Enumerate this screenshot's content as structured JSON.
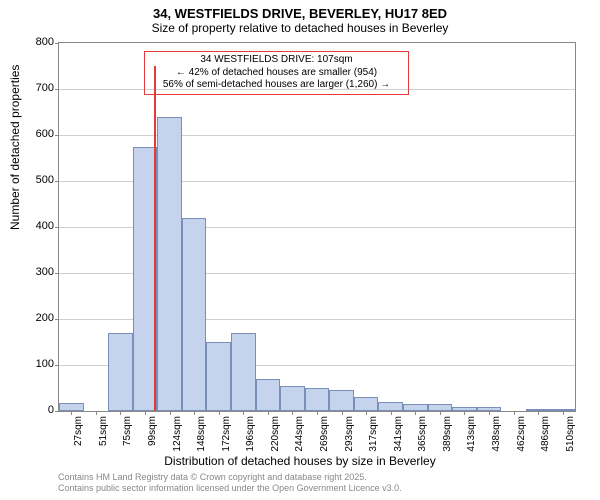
{
  "title": "34, WESTFIELDS DRIVE, BEVERLEY, HU17 8ED",
  "subtitle": "Size of property relative to detached houses in Beverley",
  "chart": {
    "type": "histogram",
    "ylabel": "Number of detached properties",
    "xlabel": "Distribution of detached houses by size in Beverley",
    "ylim": [
      0,
      800
    ],
    "ytick_step": 100,
    "background_color": "#ffffff",
    "grid_color": "#d0d0d0",
    "bar_fill": "#c6d3ec",
    "bar_stroke": "#7a8fb8",
    "marker_color": "#e63939",
    "xtick_labels": [
      "27sqm",
      "51sqm",
      "75sqm",
      "99sqm",
      "124sqm",
      "148sqm",
      "172sqm",
      "196sqm",
      "220sqm",
      "244sqm",
      "269sqm",
      "293sqm",
      "317sqm",
      "341sqm",
      "365sqm",
      "389sqm",
      "413sqm",
      "438sqm",
      "462sqm",
      "486sqm",
      "510sqm"
    ],
    "values": [
      18,
      0,
      170,
      575,
      640,
      420,
      150,
      170,
      70,
      55,
      50,
      45,
      30,
      20,
      15,
      15,
      8,
      8,
      0,
      5,
      3
    ],
    "marker_position_index": 3.35,
    "marker_height": 750,
    "callout": {
      "line1": "34 WESTFIELDS DRIVE: 107sqm",
      "line2": "← 42% of detached houses are smaller (954)",
      "line3": "56% of semi-detached houses are larger (1,260) →"
    }
  },
  "footer": {
    "line1": "Contains HM Land Registry data © Crown copyright and database right 2025.",
    "line2": "Contains public sector information licensed under the Open Government Licence v3.0."
  }
}
